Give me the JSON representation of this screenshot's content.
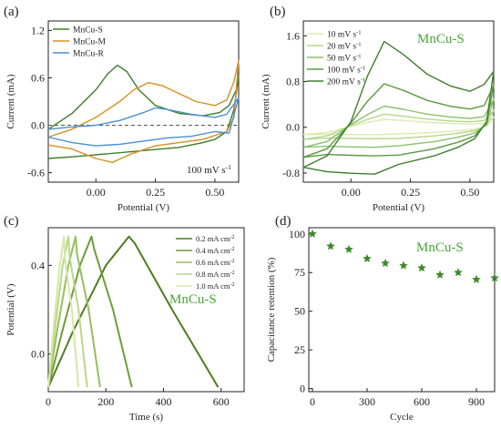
{
  "panels": [
    {
      "id": "a",
      "panel_label": "(a)",
      "chart_data": {
        "type": "line",
        "xlabel": "Potential (V)",
        "ylabel": "Current (mA)",
        "xlim": [
          -0.2,
          0.6
        ],
        "ylim": [
          -0.72,
          1.32
        ],
        "xticks": [
          0.0,
          0.25,
          0.5
        ],
        "xtick_labels": [
          "0.00",
          "0.25",
          "0.50"
        ],
        "yticks": [
          -0.6,
          0.0,
          0.6,
          1.2
        ],
        "ytick_labels": [
          "-0.6",
          "0.0",
          "0.6",
          "1.2"
        ],
        "legend_position": "top-left",
        "annotations": [
          {
            "text": "100 mV s",
            "sup": "-1"
          }
        ],
        "series": [
          {
            "name": "MnCu-S",
            "color": "#3e7d2a",
            "x": [
              -0.2,
              -0.1,
              0.0,
              0.05,
              0.09,
              0.13,
              0.18,
              0.25,
              0.35,
              0.45,
              0.52,
              0.56,
              0.59,
              0.6,
              0.58,
              0.55,
              0.5,
              0.45,
              0.35,
              0.2,
              0.05,
              -0.1,
              -0.2
            ],
            "y": [
              -0.05,
              0.15,
              0.45,
              0.65,
              0.76,
              0.68,
              0.45,
              0.25,
              0.15,
              0.12,
              0.16,
              0.25,
              0.45,
              0.62,
              0.2,
              -0.08,
              -0.18,
              -0.22,
              -0.28,
              -0.32,
              -0.36,
              -0.4,
              -0.42
            ]
          },
          {
            "name": "MnCu-M",
            "color": "#d4901f",
            "x": [
              -0.2,
              -0.1,
              0.0,
              0.1,
              0.16,
              0.22,
              0.28,
              0.35,
              0.42,
              0.5,
              0.55,
              0.58,
              0.6,
              0.58,
              0.55,
              0.45,
              0.35,
              0.25,
              0.15,
              0.07,
              0.0,
              -0.1,
              -0.2
            ],
            "y": [
              -0.15,
              -0.05,
              0.1,
              0.3,
              0.45,
              0.54,
              0.5,
              0.4,
              0.3,
              0.25,
              0.32,
              0.55,
              0.82,
              0.1,
              -0.08,
              -0.18,
              -0.22,
              -0.26,
              -0.36,
              -0.47,
              -0.42,
              -0.3,
              -0.25
            ]
          },
          {
            "name": "MnCu-R",
            "color": "#4a8fd6",
            "x": [
              -0.2,
              -0.1,
              0.0,
              0.1,
              0.2,
              0.25,
              0.3,
              0.4,
              0.5,
              0.55,
              0.6,
              0.56,
              0.5,
              0.4,
              0.3,
              0.2,
              0.1,
              0.0,
              -0.1,
              -0.2
            ],
            "y": [
              -0.05,
              -0.02,
              0.0,
              0.06,
              0.16,
              0.22,
              0.2,
              0.14,
              0.1,
              0.14,
              0.35,
              -0.1,
              -0.08,
              -0.14,
              -0.16,
              -0.2,
              -0.24,
              -0.26,
              -0.22,
              -0.15
            ]
          }
        ]
      }
    },
    {
      "id": "b",
      "panel_label": "(b)",
      "chart_data": {
        "type": "line",
        "xlabel": "Potential (V)",
        "ylabel": "Current (mA)",
        "xlim": [
          -0.2,
          0.6
        ],
        "ylim": [
          -0.96,
          1.86
        ],
        "xticks": [
          0.0,
          0.25,
          0.5
        ],
        "xtick_labels": [
          "0.00",
          "0.25",
          "0.50"
        ],
        "yticks": [
          -0.8,
          0.0,
          0.8,
          1.6
        ],
        "ytick_labels": [
          "-0.8",
          "0.0",
          "0.8",
          "1.6"
        ],
        "legend_position": "top-left",
        "annotations": [
          {
            "text": "MnCu-S"
          }
        ],
        "series": [
          {
            "name": "10 mV s",
            "sup": "-1",
            "color": "#d9ecb0",
            "peak": 0.14,
            "low": -0.13,
            "scale": 0.18
          },
          {
            "name": "20 mV s",
            "sup": "-1",
            "color": "#b4d88a",
            "peak": 0.23,
            "low": -0.2,
            "scale": 0.3
          },
          {
            "name": "50 mV s",
            "sup": "-1",
            "color": "#8bc16a",
            "peak": 0.37,
            "low": -0.35,
            "scale": 0.5
          },
          {
            "name": "100 mV s",
            "sup": "-1",
            "color": "#5b9a3f",
            "peak": 0.76,
            "low": -0.5,
            "scale": 0.75
          },
          {
            "name": "200 mV s",
            "sup": "-1",
            "color": "#3f7d2b",
            "peak": 1.5,
            "low": -0.82,
            "scale": 1.0
          }
        ]
      }
    },
    {
      "id": "c",
      "panel_label": "(c)",
      "chart_data": {
        "type": "line",
        "xlabel": "Time (s)",
        "ylabel": "Potential (V)",
        "xlim": [
          0,
          680
        ],
        "ylim": [
          -0.17,
          0.57
        ],
        "xticks": [
          0,
          200,
          400,
          600
        ],
        "xtick_labels": [
          "0",
          "200",
          "400",
          "600"
        ],
        "yticks": [
          0.0,
          0.4
        ],
        "ytick_labels": [
          "0.0",
          "0.4"
        ],
        "legend_position": "top-right",
        "annotations": [
          {
            "text": "MnCu-S"
          }
        ],
        "series": [
          {
            "name": "0.2 mA cm",
            "sup": "-2",
            "color": "#4e7d1e",
            "x": [
              0,
              85,
              200,
              280,
              300,
              430,
              590
            ],
            "y": [
              -0.15,
              0.1,
              0.4,
              0.53,
              0.5,
              0.2,
              -0.15
            ]
          },
          {
            "name": "0.4 mA cm",
            "sup": "-2",
            "color": "#6e9c3a",
            "x": [
              0,
              48,
              110,
              150,
              160,
              225,
              290
            ],
            "y": [
              -0.15,
              0.1,
              0.4,
              0.53,
              0.47,
              0.2,
              -0.15
            ]
          },
          {
            "name": "0.6 mA cm",
            "sup": "-2",
            "color": "#98bd5e",
            "x": [
              0,
              30,
              70,
              95,
              100,
              140,
              180
            ],
            "y": [
              -0.15,
              0.1,
              0.4,
              0.53,
              0.45,
              0.2,
              -0.15
            ]
          },
          {
            "name": "0.8 mA cm",
            "sup": "-2",
            "color": "#bcd68a",
            "x": [
              0,
              22,
              50,
              70,
              74,
              105,
              135
            ],
            "y": [
              -0.15,
              0.1,
              0.4,
              0.53,
              0.44,
              0.2,
              -0.15
            ]
          },
          {
            "name": "1.0 mA cm",
            "sup": "-2",
            "color": "#d6e8a8",
            "x": [
              0,
              17,
              40,
              55,
              58,
              82,
              105
            ],
            "y": [
              -0.15,
              0.1,
              0.4,
              0.53,
              0.43,
              0.2,
              -0.15
            ]
          }
        ]
      }
    },
    {
      "id": "d",
      "panel_label": "(d)",
      "chart_data": {
        "type": "scatter",
        "xlabel": "Cycle",
        "ylabel": "Capacitance retention (%)",
        "xlim": [
          -20,
          1000
        ],
        "ylim": [
          -2,
          104
        ],
        "xticks": [
          0,
          300,
          600,
          900
        ],
        "xtick_labels": [
          "0",
          "300",
          "600",
          "900"
        ],
        "yticks": [
          0,
          25,
          50,
          75,
          100
        ],
        "ytick_labels": [
          "0",
          "25",
          "50",
          "75",
          "100"
        ],
        "annotations": [
          {
            "text": "MnCu-S"
          }
        ],
        "series": [
          {
            "marker": "star",
            "color": "#3d8a2a",
            "x": [
              0,
              100,
              200,
              300,
              400,
              500,
              600,
              700,
              800,
              900,
              1000
            ],
            "y": [
              100,
              92,
              90,
              84,
              81,
              79.5,
              78,
              73.5,
              75,
              70.5,
              71.5
            ]
          }
        ]
      }
    }
  ]
}
